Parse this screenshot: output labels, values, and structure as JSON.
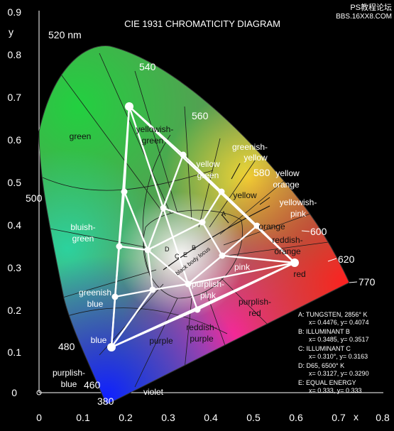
{
  "title": "CIE 1931 CHROMATICITY DIAGRAM",
  "watermark": {
    "line1": "PS教程论坛",
    "line2": "BBS.16XX8.COM"
  },
  "axes": {
    "x_label": "x",
    "y_label": "y",
    "x_ticks": [
      "0",
      "0.1",
      "0.2",
      "0.3",
      "0.4",
      "0.5",
      "0.6",
      "0.7",
      "0.8"
    ],
    "y_ticks": [
      "0",
      "0.1",
      "0.2",
      "0.3",
      "0.4",
      "0.5",
      "0.6",
      "0.7",
      "0.8",
      "0.9"
    ]
  },
  "wavelengths": {
    "w380": "380",
    "w460": "460",
    "w480": "480",
    "w500": "500",
    "w520": "520 nm",
    "w540": "540",
    "w560": "560",
    "w580": "580",
    "w600": "600",
    "w620": "620",
    "w770": "770"
  },
  "regions": {
    "green": "green",
    "yellowish_green_1": "yellowish-",
    "yellowish_green_2": "green",
    "greenish_yellow_1": "greenish-",
    "greenish_yellow_2": "yellow",
    "yellow_green_1": "yellow",
    "yellow_green_2": "green",
    "yellow": "yellow",
    "yellow_orange_1": "yellow",
    "yellow_orange_2": "orange",
    "yellowish_pink_1": "yellowish-",
    "yellowish_pink_2": "pink",
    "orange": "orange",
    "reddish_orange_1": "reddish-",
    "reddish_orange_2": "orange",
    "bluish_green_1": "bluish-",
    "bluish_green_2": "green",
    "pink": "pink",
    "red": "red",
    "greenish_blue_1": "greenish",
    "greenish_blue_2": "blue",
    "purplish_pink_1": "purplish-",
    "purplish_pink_2": "pink",
    "purplish_red_1": "purplish-",
    "purplish_red_2": "red",
    "blue": "blue",
    "purple": "purple",
    "reddish_purple_1": "reddish-",
    "reddish_purple_2": "purple",
    "purplish_blue_1": "purplish-",
    "purplish_blue_2": "blue",
    "violet": "violet",
    "locus_label": "black body locus"
  },
  "markers": {
    "a": "A",
    "b": "B",
    "c": "C",
    "d": "D",
    "e": "E"
  },
  "legend": {
    "a1": "A:  TUNGSTEN, 2856° K",
    "a2": "x= 0.4476, y= 0.4074",
    "b1": "B:  ILLUMINANT B",
    "b2": "x= 0.3485, y= 0.3517",
    "c1": "C:  ILLUMINANT C",
    "c2": "x= 0.310°, y= 0.3163",
    "d1": "D:  D65, 6500° K",
    "d2": "x= 0.3127, y= 0.3290",
    "e1": "E:  EQUAL ENERGY",
    "e2": "x= 0.333, y= 0.333"
  },
  "colors": {
    "background": "#000000",
    "green": "#22c84a",
    "red": "#ff2a2a",
    "blue": "#1a30ff",
    "white": "#ffffff"
  }
}
